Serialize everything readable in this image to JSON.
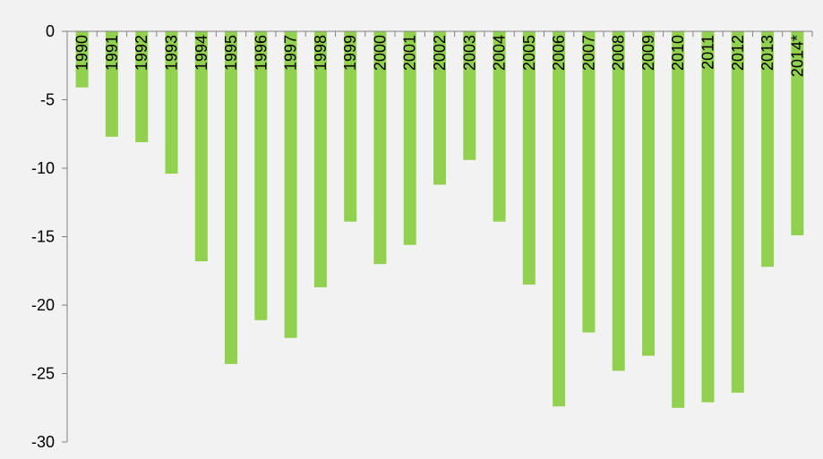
{
  "chart_data": {
    "type": "bar",
    "categories": [
      "1990",
      "1991",
      "1992",
      "1993",
      "1994",
      "1995",
      "1996",
      "1997",
      "1998",
      "1999",
      "2000",
      "2001",
      "2002",
      "2003",
      "2004",
      "2005",
      "2006",
      "2007",
      "2008",
      "2009",
      "2010",
      "2011",
      "2012",
      "2013",
      "2014*"
    ],
    "series": [
      {
        "values": [
          -4.1,
          -7.7,
          -8.1,
          -10.4,
          -16.8,
          -24.3,
          -21.1,
          -22.4,
          -18.7,
          -13.9,
          -17.0,
          -15.6,
          -11.2,
          -9.4,
          -13.9,
          -18.5,
          -27.4,
          -22.0,
          -24.8,
          -23.7,
          -27.5,
          -27.1,
          -26.4,
          -17.2,
          -14.9
        ]
      }
    ],
    "title": "",
    "xlabel": "",
    "ylabel": "",
    "ylim": [
      -30,
      0
    ],
    "yticks": [
      0,
      -5,
      -10,
      -15,
      -20,
      -25,
      -30
    ],
    "ytick_labels": [
      "0",
      "-5",
      "-10",
      "-15",
      "-20",
      "-25",
      "-30"
    ],
    "grid": false,
    "legend": "none",
    "category_label_position": "top, rotated vertical",
    "bar_color": "#92d050",
    "axis_color": "#808080",
    "background_color": "#f2f2f2"
  }
}
